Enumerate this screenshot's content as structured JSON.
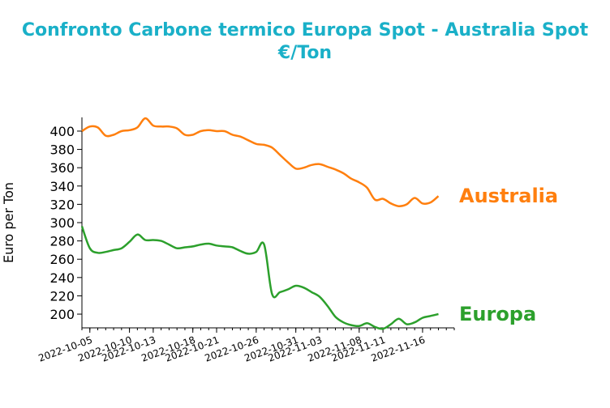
{
  "chart_data": {
    "type": "line",
    "title_line1": "Confronto Carbone termico Europa Spot - Australia Spot",
    "title_line2": "€/Ton",
    "ylabel": "Euro per Ton",
    "xlabel": "",
    "ylim": [
      185,
      415
    ],
    "y_ticks": [
      200,
      220,
      240,
      260,
      280,
      300,
      320,
      340,
      360,
      380,
      400
    ],
    "x_ticks": [
      "2022-10-05",
      "2022-10-10",
      "2022-10-13",
      "2022-10-18",
      "2022-10-21",
      "2022-10-26",
      "2022-10-31",
      "2022-11-03",
      "2022-11-08",
      "2022-11-11",
      "2022-11-16"
    ],
    "x_range": [
      "2022-10-04",
      "2022-11-20"
    ],
    "series": [
      {
        "name": "Australia",
        "color": "#ff7f0e",
        "x": [
          "2022-10-04",
          "2022-10-05",
          "2022-10-06",
          "2022-10-07",
          "2022-10-08",
          "2022-10-09",
          "2022-10-10",
          "2022-10-11",
          "2022-10-12",
          "2022-10-13",
          "2022-10-14",
          "2022-10-15",
          "2022-10-16",
          "2022-10-17",
          "2022-10-18",
          "2022-10-19",
          "2022-10-20",
          "2022-10-21",
          "2022-10-22",
          "2022-10-23",
          "2022-10-24",
          "2022-10-25",
          "2022-10-26",
          "2022-10-27",
          "2022-10-28",
          "2022-10-29",
          "2022-10-30",
          "2022-10-31",
          "2022-11-01",
          "2022-11-02",
          "2022-11-03",
          "2022-11-04",
          "2022-11-05",
          "2022-11-06",
          "2022-11-07",
          "2022-11-08",
          "2022-11-09",
          "2022-11-10",
          "2022-11-11",
          "2022-11-12",
          "2022-11-13",
          "2022-11-14",
          "2022-11-15",
          "2022-11-16",
          "2022-11-17",
          "2022-11-18"
        ],
        "values": [
          400,
          405,
          404,
          395,
          396,
          400,
          401,
          404,
          414,
          406,
          405,
          405,
          403,
          396,
          396,
          400,
          401,
          400,
          400,
          396,
          394,
          390,
          386,
          385,
          382,
          374,
          366,
          359,
          360,
          363,
          364,
          361,
          358,
          354,
          348,
          344,
          338,
          325,
          326,
          321,
          318,
          320,
          327,
          321,
          322,
          329
        ]
      },
      {
        "name": "Europa",
        "color": "#2ca02c",
        "x": [
          "2022-10-04",
          "2022-10-05",
          "2022-10-06",
          "2022-10-07",
          "2022-10-08",
          "2022-10-09",
          "2022-10-10",
          "2022-10-11",
          "2022-10-12",
          "2022-10-13",
          "2022-10-14",
          "2022-10-15",
          "2022-10-16",
          "2022-10-17",
          "2022-10-18",
          "2022-10-19",
          "2022-10-20",
          "2022-10-21",
          "2022-10-22",
          "2022-10-23",
          "2022-10-24",
          "2022-10-25",
          "2022-10-26",
          "2022-10-27",
          "2022-10-28",
          "2022-10-29",
          "2022-10-30",
          "2022-10-31",
          "2022-11-01",
          "2022-11-02",
          "2022-11-03",
          "2022-11-04",
          "2022-11-05",
          "2022-11-06",
          "2022-11-07",
          "2022-11-08",
          "2022-11-09",
          "2022-11-10",
          "2022-11-11",
          "2022-11-12",
          "2022-11-13",
          "2022-11-14",
          "2022-11-15",
          "2022-11-16",
          "2022-11-17",
          "2022-11-18"
        ],
        "values": [
          296,
          272,
          267,
          268,
          270,
          272,
          279,
          287,
          281,
          281,
          280,
          276,
          272,
          273,
          274,
          276,
          277,
          275,
          274,
          273,
          269,
          266,
          268,
          276,
          222,
          224,
          227,
          231,
          229,
          224,
          219,
          209,
          197,
          191,
          188,
          187,
          190,
          186,
          184,
          189,
          195,
          189,
          191,
          196,
          198,
          200
        ]
      }
    ]
  }
}
